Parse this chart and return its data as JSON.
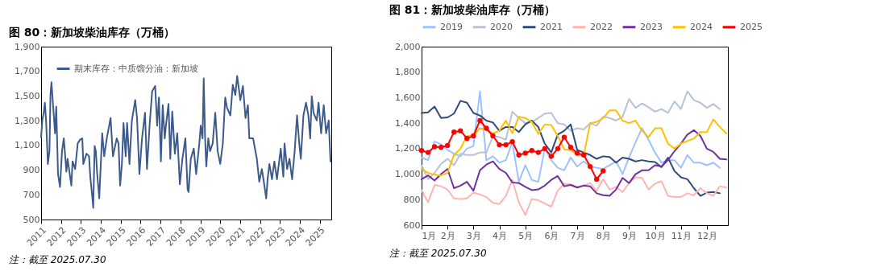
{
  "chart_data": [
    {
      "type": "line",
      "title": "图 80：新加坡柴油库存（万桶）",
      "legend": "top left",
      "grid": false,
      "xlim": [
        2011,
        2025.58
      ],
      "xticks": [
        2011,
        2012,
        2013,
        2014,
        2015,
        2016,
        2017,
        2018,
        2019,
        2020,
        2021,
        2022,
        2023,
        2024,
        2025
      ],
      "ylim": [
        500,
        1900
      ],
      "yticks": [
        500,
        700,
        {
          "value": 900,
          "label": "900"
        },
        {
          "value": 1100,
          "label": "1,100"
        },
        {
          "value": 1300,
          "label": "1,300"
        },
        {
          "value": 1500,
          "label": "1,500"
        },
        {
          "value": 1700,
          "label": "1,700"
        },
        {
          "value": 1900,
          "label": "1,900"
        }
      ],
      "annotations": [
        "注：截至 2025.07.30"
      ],
      "series": [
        {
          "name": "期末库存：中质馏分油：新加坡",
          "color": "#3c5a8a",
          "x": [
            2011.0,
            2011.06,
            2011.13,
            2011.19,
            2011.25,
            2011.34,
            2011.42,
            2011.47,
            2011.52,
            2011.61,
            2011.7,
            2011.76,
            2011.85,
            2011.95,
            2012.05,
            2012.14,
            2012.27,
            2012.33,
            2012.52,
            2012.58,
            2012.71,
            2012.84,
            2012.96,
            2013.07,
            2013.12,
            2013.28,
            2013.41,
            2013.47,
            2013.56,
            2013.62,
            2013.69,
            2013.75,
            2013.81,
            2013.92,
            2014.07,
            2014.17,
            2014.3,
            2014.49,
            2014.61,
            2014.8,
            2014.89,
            2014.97,
            2015.06,
            2015.14,
            2015.25,
            2015.32,
            2015.44,
            2015.56,
            2015.73,
            2015.82,
            2015.94,
            2016.07,
            2016.22,
            2016.32,
            2016.45,
            2016.58,
            2016.73,
            2016.83,
            2016.92,
            2017.02,
            2017.11,
            2017.21,
            2017.27,
            2017.4,
            2017.49,
            2017.59,
            2017.72,
            2017.84,
            2017.97,
            2018.1,
            2018.25,
            2018.36,
            2018.41,
            2018.52,
            2018.67,
            2018.79,
            2018.95,
            2019.02,
            2019.11,
            2019.17,
            2019.24,
            2019.3,
            2019.4,
            2019.49,
            2019.62,
            2019.75,
            2019.87,
            2020.0,
            2020.13,
            2020.25,
            2020.34,
            2020.51,
            2020.63,
            2020.76,
            2020.85,
            2021.01,
            2021.14,
            2021.27,
            2021.39,
            2021.46,
            2021.65,
            2021.84,
            2021.96,
            2022.09,
            2022.19,
            2022.31,
            2022.38,
            2022.47,
            2022.6,
            2022.72,
            2022.85,
            2023.04,
            2023.17,
            2023.23,
            2023.36,
            2023.48,
            2023.61,
            2023.74,
            2023.86,
            2023.97,
            2024.05,
            2024.18,
            2024.31,
            2024.43,
            2024.52,
            2024.6,
            2024.69,
            2024.85,
            2024.94,
            2025.07,
            2025.2,
            2025.32,
            2025.45,
            2025.54
          ],
          "values": [
            1167,
            1302,
            1364,
            1446,
            1302,
            950,
            1054,
            1508,
            1612,
            1405,
            1198,
            1415,
            868,
            764,
            1054,
            1157,
            888,
            992,
            775,
            971,
            909,
            1116,
            1147,
            1157,
            950,
            1033,
            1012,
            847,
            702,
            595,
            1095,
            1054,
            888,
            671,
            1198,
            1012,
            1157,
            1322,
            1012,
            1157,
            1116,
            775,
            950,
            1281,
            1012,
            1281,
            950,
            1302,
            1467,
            1322,
            868,
            1157,
            1364,
            909,
            1260,
            1539,
            1581,
            1260,
            1488,
            971,
            1426,
            1157,
            1260,
            1436,
            992,
            1374,
            1033,
            1198,
            785,
            992,
            1157,
            744,
            723,
            992,
            1074,
            868,
            1116,
            1260,
            1157,
            1643,
            1157,
            930,
            1157,
            1054,
            1116,
            1364,
            1054,
            950,
            1116,
            1488,
            1405,
            1343,
            1591,
            1508,
            1663,
            1467,
            1581,
            1322,
            1426,
            1157,
            1157,
            992,
            806,
            909,
            806,
            671,
            826,
            950,
            826,
            971,
            826,
            1074,
            847,
            1116,
            909,
            992,
            826,
            1054,
            1343,
            1116,
            992,
            1343,
            1446,
            1343,
            1157,
            1498,
            1364,
            1302,
            1446,
            1198,
            1426,
            1198,
            1302,
            971
          ]
        }
      ]
    },
    {
      "type": "line",
      "title": "图 81：新加坡柴油库存（万桶）",
      "legend": "top",
      "grid": false,
      "x": [
        1,
        1.25,
        1.5,
        1.75,
        2,
        2.25,
        2.5,
        2.75,
        3,
        3.25,
        3.5,
        3.75,
        4,
        4.25,
        4.5,
        4.75,
        5,
        5.25,
        5.5,
        5.75,
        6,
        6.25,
        6.5,
        6.75,
        7,
        7.25,
        7.5,
        7.75,
        8,
        8.25,
        8.5,
        8.75,
        9,
        9.25,
        9.5,
        9.75,
        10,
        10.25,
        10.5,
        10.75,
        11,
        11.25,
        11.5,
        11.75,
        12,
        12.25,
        12.5,
        12.75
      ],
      "xlim": [
        1,
        12.81
      ],
      "xticks": [
        {
          "value": 1,
          "label": "1月"
        },
        {
          "value": 2,
          "label": "2月"
        },
        {
          "value": 3,
          "label": "3月"
        },
        {
          "value": 4,
          "label": "4月"
        },
        {
          "value": 5,
          "label": "5月"
        },
        {
          "value": 6,
          "label": "6月"
        },
        {
          "value": 7,
          "label": "7月"
        },
        {
          "value": 8,
          "label": "8月"
        },
        {
          "value": 9,
          "label": "9月"
        },
        {
          "value": 10,
          "label": "10月"
        },
        {
          "value": 11,
          "label": "11月"
        },
        {
          "value": 12,
          "label": "12月"
        }
      ],
      "ylim": [
        600,
        2000
      ],
      "yticks": [
        600,
        800,
        {
          "value": 1000,
          "label": "1,000"
        },
        {
          "value": 1200,
          "label": "1,200"
        },
        {
          "value": 1400,
          "label": "1,400"
        },
        {
          "value": 1600,
          "label": "1,600"
        },
        {
          "value": 1800,
          "label": "1,800"
        },
        {
          "value": 2000,
          "label": "2,000"
        }
      ],
      "annotations": [
        "注：截至 2025.07.30"
      ],
      "series": [
        {
          "name": "2019",
          "color": "#9dc3ff",
          "values": [
            1130,
            1110,
            1255,
            1235,
            1190,
            1160,
            1140,
            1200,
            1220,
            1650,
            1110,
            1140,
            1090,
            1110,
            1250,
            940,
            1070,
            955,
            940,
            1200,
            1110,
            1050,
            1030,
            1130,
            1060,
            1100,
            1060,
            1050,
            1040,
            1070,
            1100,
            1000,
            1130,
            1250,
            1360,
            1270,
            1170,
            1090,
            1110,
            1110,
            1050,
            1150,
            1090,
            1090,
            1070,
            1090,
            1050,
            null
          ]
        },
        {
          "name": "2020",
          "color": "#b8c2d6",
          "values": [
            1070,
            960,
            1010,
            1080,
            1120,
            1070,
            1160,
            1150,
            1150,
            1170,
            1170,
            1300,
            1290,
            1270,
            1490,
            1440,
            1400,
            1410,
            1440,
            1475,
            1480,
            1400,
            1390,
            1340,
            1360,
            1350,
            1400,
            1380,
            1450,
            1440,
            1420,
            1450,
            1590,
            1520,
            1555,
            1525,
            1490,
            1510,
            1480,
            1570,
            1510,
            1650,
            1580,
            1560,
            1520,
            1550,
            1510,
            null
          ]
        },
        {
          "name": "2021",
          "color": "#2f4b7c",
          "values": [
            1480,
            1485,
            1530,
            1440,
            1445,
            1475,
            1575,
            1560,
            1480,
            1460,
            1420,
            1405,
            1340,
            1370,
            1370,
            1330,
            1390,
            1420,
            1370,
            1240,
            1170,
            1310,
            1340,
            1390,
            1190,
            1170,
            1150,
            1120,
            1140,
            1135,
            1090,
            1130,
            1120,
            1100,
            1110,
            1100,
            1095,
            1055,
            1130,
            1025,
            975,
            960,
            890,
            830,
            855,
            860,
            850,
            null
          ]
        },
        {
          "name": "2022",
          "color": "#ffb3b3",
          "values": [
            875,
            780,
            915,
            905,
            880,
            810,
            805,
            810,
            855,
            840,
            820,
            775,
            765,
            830,
            955,
            780,
            680,
            805,
            795,
            770,
            745,
            870,
            925,
            920,
            900,
            910,
            930,
            870,
            960,
            880,
            900,
            860,
            930,
            975,
            970,
            880,
            925,
            945,
            830,
            820,
            820,
            850,
            835,
            890,
            850,
            830,
            905,
            895
          ]
        },
        {
          "name": "2023",
          "color": "#7030a0",
          "values": [
            960,
            990,
            950,
            1000,
            1040,
            890,
            910,
            940,
            870,
            1030,
            1075,
            1100,
            1040,
            1010,
            935,
            930,
            900,
            875,
            880,
            910,
            955,
            985,
            905,
            915,
            895,
            910,
            905,
            850,
            835,
            830,
            880,
            970,
            930,
            1000,
            1030,
            1030,
            1070,
            1060,
            1110,
            1180,
            1240,
            1310,
            1345,
            1300,
            1200,
            1175,
            1120,
            1115
          ]
        },
        {
          "name": "2024",
          "color": "#ffc000",
          "values": [
            1040,
            1010,
            995,
            990,
            1010,
            1150,
            1200,
            1300,
            1300,
            1360,
            1345,
            1320,
            1340,
            1420,
            1320,
            1450,
            1440,
            1410,
            1315,
            1390,
            1385,
            1300,
            1195,
            1190,
            1150,
            1145,
            1400,
            1410,
            1440,
            1500,
            1500,
            1420,
            1400,
            1420,
            1340,
            1290,
            1360,
            1360,
            1240,
            1200,
            1240,
            1260,
            1280,
            1330,
            1330,
            1430,
            1370,
            1320
          ]
        },
        {
          "name": "2025",
          "color": "#ff0000",
          "marker": "circle",
          "values": [
            1185,
            1170,
            1215,
            1210,
            1225,
            1330,
            1340,
            1280,
            1300,
            1420,
            1360,
            1300,
            1230,
            1230,
            1255,
            1150,
            1165,
            1185,
            1170,
            1200,
            1140,
            1200,
            1290,
            1210,
            1165,
            1150,
            1060,
            960,
            1025,
            null,
            null,
            null,
            null,
            null,
            null,
            null,
            null,
            null,
            null,
            null,
            null,
            null,
            null,
            null,
            null,
            null,
            null,
            null
          ]
        }
      ]
    }
  ]
}
